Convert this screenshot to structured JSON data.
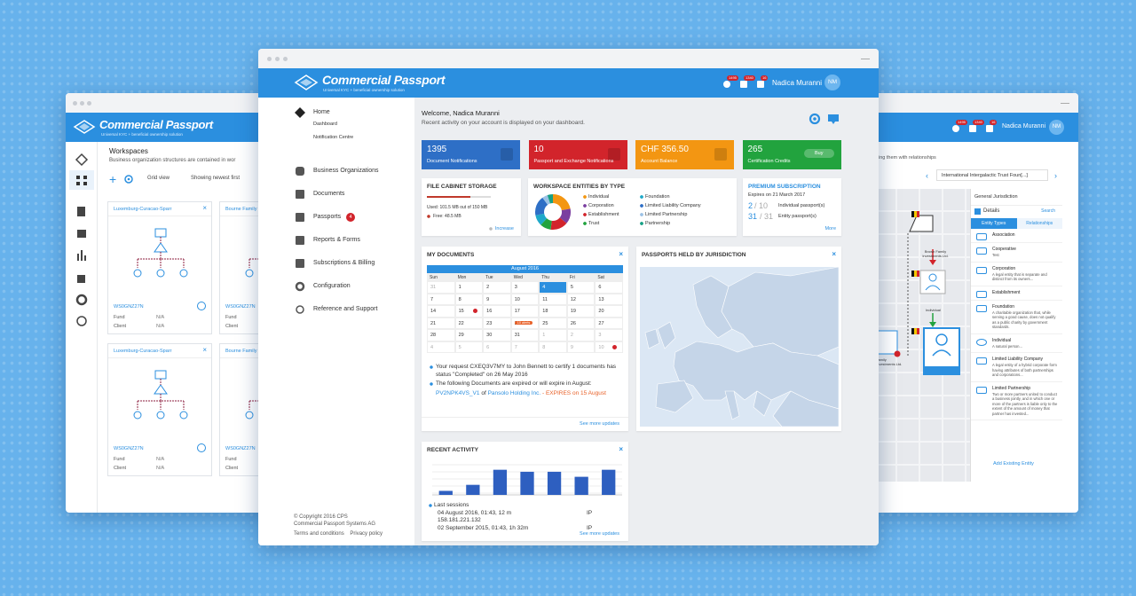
{
  "center": {
    "brand": "Commercial Passport",
    "tagline": "Universal KYC + beneficial ownership solution",
    "badges": [
      "1495",
      "1340",
      "16"
    ],
    "user": "Nadica Muranni",
    "initials": "NM",
    "nav": [
      {
        "label": "Home",
        "sub": [
          "Dashboard",
          "Notification Centre"
        ]
      },
      {
        "label": "Business Organizations"
      },
      {
        "label": "Documents"
      },
      {
        "label": "Passports",
        "badge": "4"
      },
      {
        "label": "Reports & Forms"
      },
      {
        "label": "Subscriptions & Billing"
      },
      {
        "label": "Configuration"
      },
      {
        "label": "Reference and Support"
      }
    ],
    "footer": [
      "© Copyright 2016 CPS",
      "Commercial Passport Systems AG"
    ],
    "footer_links": [
      "Terms and conditions",
      "Privacy policy"
    ],
    "welcome": "Welcome, Nadica Muranni",
    "welcome_sub": "Recent activity on your account is displayed on your dashboard.",
    "tiles": [
      {
        "value": "1395",
        "label": "Document Notifications",
        "color": "#2e6fc6"
      },
      {
        "value": "10",
        "label": "Passport and Exchange Notifications",
        "color": "#d2242b"
      },
      {
        "value": "CHF 356.50",
        "label": "Account Balance",
        "color": "#f39612"
      },
      {
        "value": "265",
        "label": "Certification Credits",
        "color": "#22a33e",
        "button": "Buy"
      }
    ],
    "storage": {
      "title": "FILE CABINET STORAGE",
      "used_label": "Used: 101.5 MB out of 150 MB",
      "free_label": "Free: 48.5 MB",
      "link": "Increase",
      "used": 101.5,
      "total": 150
    },
    "entities": {
      "title": "WORKSPACE ENTITIES BY TYPE",
      "items": [
        {
          "name": "Individual",
          "color": "#f39612",
          "value": 22
        },
        {
          "name": "Corporation",
          "color": "#7b3fa0",
          "value": 14
        },
        {
          "name": "Establishment",
          "color": "#d2242b",
          "value": 16
        },
        {
          "name": "Trust",
          "color": "#22a33e",
          "value": 10
        },
        {
          "name": "Foundation",
          "color": "#1fa9c9",
          "value": 10
        },
        {
          "name": "Limited Liability Company",
          "color": "#2e6fc6",
          "value": 18
        },
        {
          "name": "Limited Partnership",
          "color": "#9bc2e6",
          "value": 5
        },
        {
          "name": "Partnership",
          "color": "#16a085",
          "value": 5
        }
      ]
    },
    "premium": {
      "title": "PREMIUM SUBSCRIPTION",
      "expires": "Expires on 21 March 2017",
      "rows": [
        {
          "count": "2",
          "of": "/ 10",
          "label": "Individual passport(s)"
        },
        {
          "count": "31",
          "of": "/ 31",
          "label": "Entity passport(s)"
        }
      ],
      "link": "More"
    },
    "documents": {
      "title": "MY DOCUMENTS",
      "month": "August 2016",
      "weekdays": [
        "Sun",
        "Mon",
        "Tue",
        "Wed",
        "Thu",
        "Fri",
        "Sat"
      ],
      "weeks": [
        [
          "31",
          "1",
          "2",
          "3",
          "4",
          "5",
          "6"
        ],
        [
          "7",
          "8",
          "9",
          "10",
          "11",
          "12",
          "13"
        ],
        [
          "14",
          "15",
          "16",
          "17",
          "18",
          "19",
          "20"
        ],
        [
          "21",
          "22",
          "23",
          "24",
          "25",
          "26",
          "27"
        ],
        [
          "28",
          "29",
          "30",
          "31",
          "1",
          "2",
          "3"
        ],
        [
          "4",
          "5",
          "6",
          "7",
          "8",
          "9",
          "10"
        ]
      ],
      "event": "10 alerts",
      "notes": [
        "Your request CXEQ3V7MY to John Bennett to certify 1 documents has status \"Completed\" on 26 May 2016",
        "The following Documents are expired or will expire in August:"
      ],
      "expiry": {
        "doc": "PV2NPK4VS_V1",
        "of": "of",
        "company": "Pansolo Holding Inc.",
        "note": "- EXPIRES on 15 August"
      },
      "link": "See more updates"
    },
    "jurisdiction": {
      "title": "PASSPORTS HELD BY JURISDICTION"
    },
    "activity": {
      "title": "RECENT ACTIVITY",
      "values": [
        4,
        10,
        25,
        23,
        23,
        18,
        25
      ],
      "ylim": [
        0,
        30
      ],
      "sessions_title": "Last sessions",
      "sessions": [
        {
          "when": "04 August 2016, 01:43, 12 m",
          "ip_label": "IP",
          "ip": "158.181.221.132"
        },
        {
          "when": "02 September 2015, 01:43, 1h 32m",
          "ip_label": "IP"
        }
      ],
      "link": "See more updates"
    }
  },
  "left": {
    "brand": "Commercial Passport",
    "tagline": "Universal KYC + beneficial ownership solution",
    "title": "Workspaces",
    "subtitle": "Business organization structures are contained in wor",
    "grid_view": "Grid view",
    "showing": "Showing newest first",
    "cards": [
      {
        "title": "Luxemburg-Curacao-Sparr",
        "code": "WS0GNZ27N",
        "fields": [
          {
            "label": "Fund",
            "value": "N/A"
          },
          {
            "label": "Client",
            "value": "N/A"
          }
        ]
      },
      {
        "title": "Bourne Family",
        "code": "WS0GNZ27N",
        "fields": [
          {
            "label": "Fund",
            "value": "N/A"
          },
          {
            "label": "Client",
            "value": "N/A"
          }
        ]
      },
      {
        "title": "Luxemburg-Curacao-Sparr",
        "code": "WS0GNZ27N",
        "fields": [
          {
            "label": "Fund",
            "value": "N/A"
          },
          {
            "label": "Client",
            "value": "N/A"
          }
        ]
      },
      {
        "title": "Bourne Family",
        "code": "WS0GNZ27N",
        "fields": [
          {
            "label": "Fund",
            "value": "N/A"
          },
          {
            "label": "Client",
            "value": "N/A"
          }
        ]
      }
    ]
  },
  "right": {
    "badges": [
      "1495",
      "1340",
      "16"
    ],
    "user": "Nadica Muranni",
    "initials": "NM",
    "hint": "ing them with relationships",
    "selector": "International Intergalactic Trust Foun[...]",
    "nodes": [
      "Brown Family Investments Ltd.",
      "Individual",
      "Family Investments Ltd."
    ],
    "jurisdiction": "General Jurisdiction",
    "details": "Details",
    "search": "Search",
    "tabs": [
      "Entity Types",
      "Relationships"
    ],
    "types": [
      {
        "name": "Association"
      },
      {
        "name": "Cooperative",
        "desc": "Test"
      },
      {
        "name": "Corporation",
        "desc": "A legal entity that is separate and distinct from its owners..."
      },
      {
        "name": "Establishment"
      },
      {
        "name": "Foundation",
        "desc": "A charitable organization that, while serving a good cause, does not qualify as a public charity by government standards."
      },
      {
        "name": "Individual",
        "desc": "A natural person..."
      },
      {
        "name": "Limited Liability Company",
        "desc": "A legal entity of a hybrid corporate form having attributes of both partnerships and corporations..."
      },
      {
        "name": "Limited Partnership",
        "desc": "Two or more partners united to conduct a business jointly, and in which one or more of the partners is liable only to the extent of the amount of money that partner has invested..."
      }
    ],
    "add": "Add Existing Entity"
  }
}
